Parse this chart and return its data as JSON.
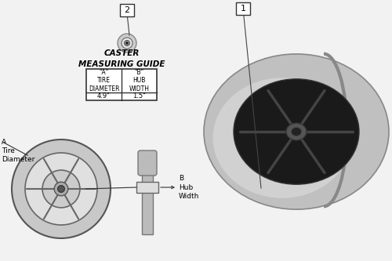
{
  "bg_color": "#f2f2f2",
  "table_title": "CASTER\nMEASURING GUIDE",
  "val_a": "4.9\"",
  "val_b": "1.5\"",
  "label_1": "1",
  "label_2": "2",
  "label_A": "A\nTire\nDiameter",
  "label_B": "B\nHub\nWidth"
}
